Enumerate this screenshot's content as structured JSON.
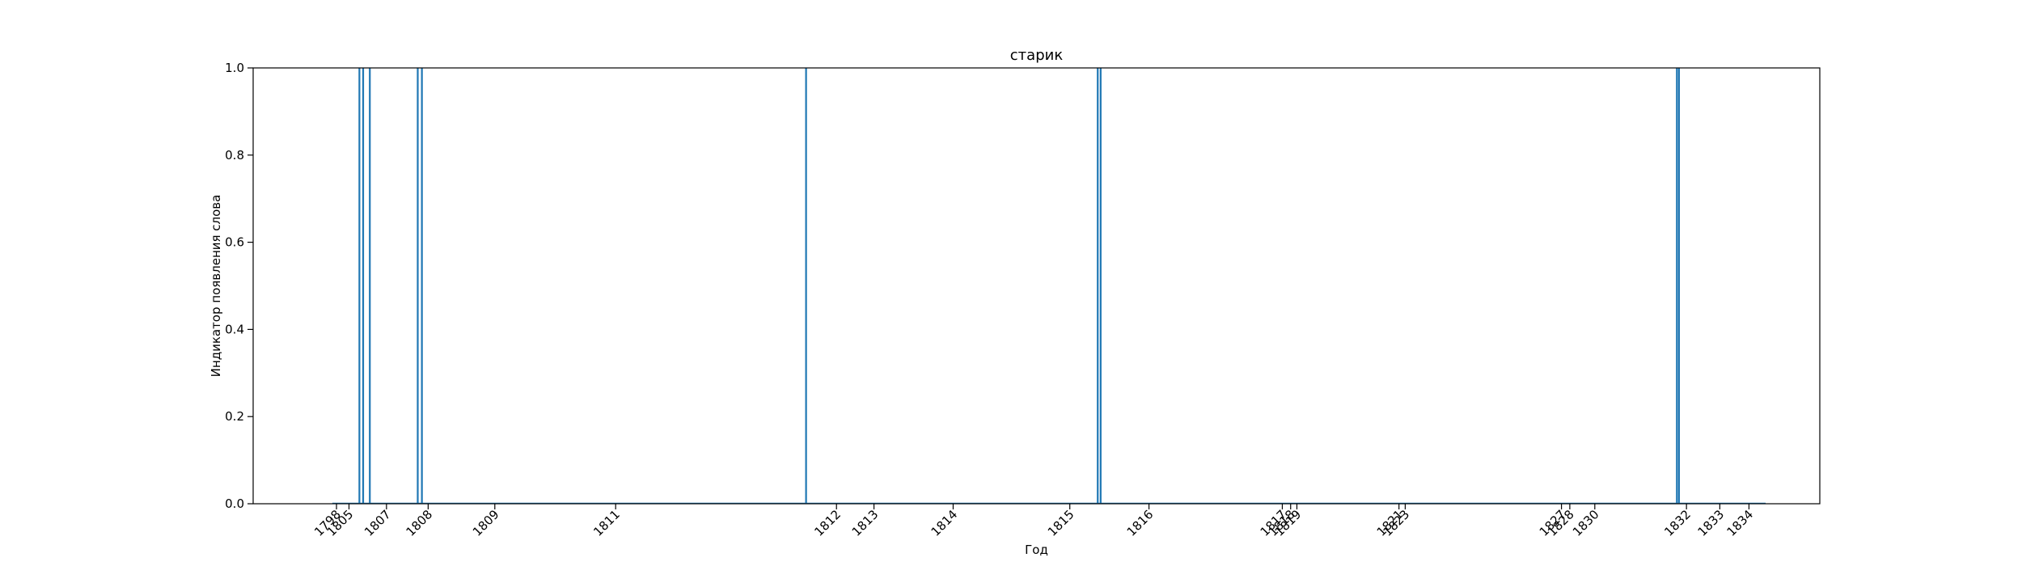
{
  "chart_data": {
    "type": "bar",
    "title": "старик",
    "xlabel": "Год",
    "ylabel": "Индикатор появления слова",
    "ylim": [
      0,
      1.0
    ],
    "xlim": [
      1799.7,
      1837.3
    ],
    "yticks": [
      "0.0",
      "0.2",
      "0.4",
      "0.6",
      "0.8",
      "1.0"
    ],
    "ytick_values": [
      0,
      0.2,
      0.4,
      0.6,
      0.8,
      1.0
    ],
    "xticks": [
      {
        "value": 1801.7,
        "label": "1798"
      },
      {
        "value": 1802.0,
        "label": "1805"
      },
      {
        "value": 1802.9,
        "label": "1807"
      },
      {
        "value": 1803.9,
        "label": "1808"
      },
      {
        "value": 1805.5,
        "label": "1809"
      },
      {
        "value": 1808.4,
        "label": "1811"
      },
      {
        "value": 1813.7,
        "label": "1812"
      },
      {
        "value": 1814.6,
        "label": "1813"
      },
      {
        "value": 1816.5,
        "label": "1814"
      },
      {
        "value": 1819.3,
        "label": "1815"
      },
      {
        "value": 1821.2,
        "label": "1816"
      },
      {
        "value": 1824.4,
        "label": "1817"
      },
      {
        "value": 1824.6,
        "label": "1818"
      },
      {
        "value": 1824.75,
        "label": "1819"
      },
      {
        "value": 1827.2,
        "label": "1821"
      },
      {
        "value": 1827.35,
        "label": "1823"
      },
      {
        "value": 1831.1,
        "label": "1827"
      },
      {
        "value": 1831.3,
        "label": "1828"
      },
      {
        "value": 1831.9,
        "label": "1830"
      },
      {
        "value": 1834.1,
        "label": "1832"
      },
      {
        "value": 1834.9,
        "label": "1833"
      },
      {
        "value": 1835.6,
        "label": "1834"
      }
    ],
    "series": [
      {
        "color": "#1f77b4",
        "x": [
          1802.25,
          1802.34,
          1802.5,
          1803.65,
          1803.75,
          1812.97,
          1819.97,
          1820.04,
          1833.87,
          1833.92
        ],
        "values": [
          1,
          1,
          1,
          1,
          1,
          1,
          1,
          1,
          1,
          1
        ]
      }
    ],
    "baseline_range": [
      1801.6,
      1836.0
    ],
    "grid": false,
    "legend": "none"
  }
}
